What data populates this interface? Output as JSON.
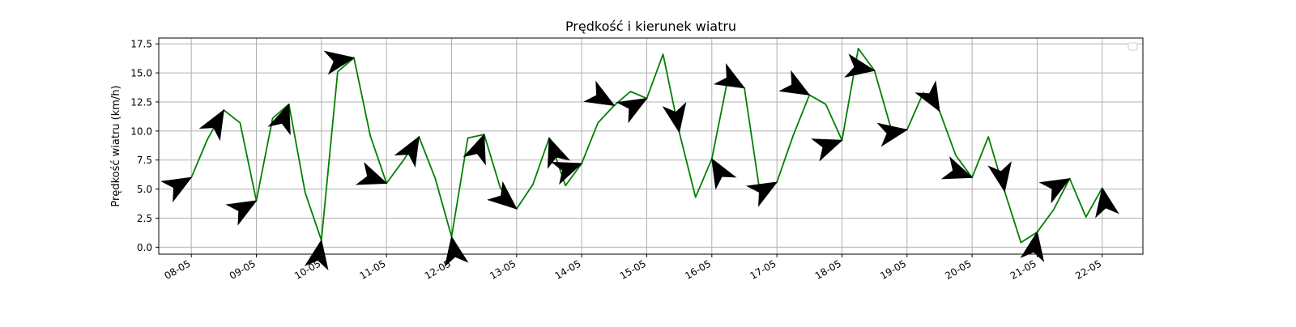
{
  "chart_data": {
    "type": "line",
    "title": "Prędkość i kierunek wiatru",
    "xlabel": "",
    "ylabel": "Prędkość wiatru (km/h)",
    "ylim": [
      -0.6,
      18.0
    ],
    "xlim": [
      "2024-05-07T12:00",
      "2024-05-22T15:00"
    ],
    "x_ticks": [
      "08-05",
      "09-05",
      "10-05",
      "11-05",
      "12-05",
      "13-05",
      "14-05",
      "15-05",
      "16-05",
      "17-05",
      "18-05",
      "19-05",
      "20-05",
      "21-05",
      "22-05"
    ],
    "y_ticks": [
      "0.0",
      "2.5",
      "5.0",
      "7.5",
      "10.0",
      "12.5",
      "15.0",
      "17.5"
    ],
    "grid": true,
    "legend": "top-right, empty",
    "line_color": "#008000",
    "arrow_color": "#000000",
    "series": [
      {
        "x": [
          "2024-05-08T00:00",
          "2024-05-08T06:00",
          "2024-05-08T12:00",
          "2024-05-08T18:00",
          "2024-05-09T00:00",
          "2024-05-09T06:00",
          "2024-05-09T12:00",
          "2024-05-09T18:00",
          "2024-05-10T00:00",
          "2024-05-10T06:00",
          "2024-05-10T12:00",
          "2024-05-10T18:00",
          "2024-05-11T00:00",
          "2024-05-11T06:00",
          "2024-05-11T12:00",
          "2024-05-11T18:00",
          "2024-05-12T00:00",
          "2024-05-12T06:00",
          "2024-05-12T12:00",
          "2024-05-12T18:00",
          "2024-05-13T00:00",
          "2024-05-13T06:00",
          "2024-05-13T12:00",
          "2024-05-13T18:00",
          "2024-05-14T00:00",
          "2024-05-14T06:00",
          "2024-05-14T12:00",
          "2024-05-14T18:00",
          "2024-05-15T00:00",
          "2024-05-15T06:00",
          "2024-05-15T12:00",
          "2024-05-15T18:00",
          "2024-05-16T00:00",
          "2024-05-16T06:00",
          "2024-05-16T12:00",
          "2024-05-16T18:00",
          "2024-05-17T00:00",
          "2024-05-17T06:00",
          "2024-05-17T12:00",
          "2024-05-17T18:00",
          "2024-05-18T00:00",
          "2024-05-18T06:00",
          "2024-05-18T12:00",
          "2024-05-18T18:00",
          "2024-05-19T00:00",
          "2024-05-19T06:00",
          "2024-05-19T12:00",
          "2024-05-19T18:00",
          "2024-05-20T00:00",
          "2024-05-20T06:00",
          "2024-05-20T12:00",
          "2024-05-20T18:00",
          "2024-05-21T00:00",
          "2024-05-21T06:00",
          "2024-05-21T12:00",
          "2024-05-21T18:00",
          "2024-05-22T00:00"
        ],
        "values": [
          6.0,
          9.3,
          11.8,
          10.7,
          4.0,
          11.1,
          12.3,
          4.7,
          0.6,
          15.1,
          16.3,
          9.6,
          5.5,
          7.4,
          9.5,
          5.9,
          0.9,
          9.4,
          9.7,
          5.1,
          3.3,
          5.4,
          9.4,
          5.3,
          7.2,
          10.7,
          12.2,
          13.4,
          12.8,
          16.6,
          9.9,
          4.3,
          7.6,
          14.6,
          13.7,
          4.3,
          5.6,
          9.6,
          13.1,
          12.3,
          9.2,
          17.1,
          15.2,
          10.3,
          10.1,
          13.3,
          11.7,
          7.9,
          6.0,
          9.5,
          4.8,
          0.4,
          1.3,
          3.2,
          5.9,
          2.6,
          5.1
        ],
        "arrow_angles_deg": [
          30,
          null,
          60,
          null,
          30,
          null,
          70,
          null,
          80,
          null,
          10,
          null,
          -20,
          null,
          60,
          null,
          100,
          null,
          70,
          null,
          -40,
          null,
          110,
          null,
          20,
          null,
          -30,
          null,
          30,
          null,
          -80,
          null,
          120,
          null,
          -30,
          null,
          30,
          null,
          -30,
          null,
          20,
          null,
          -10,
          null,
          10,
          null,
          -60,
          null,
          -20,
          null,
          -80,
          null,
          80,
          null,
          30,
          null,
          100
        ]
      }
    ]
  }
}
